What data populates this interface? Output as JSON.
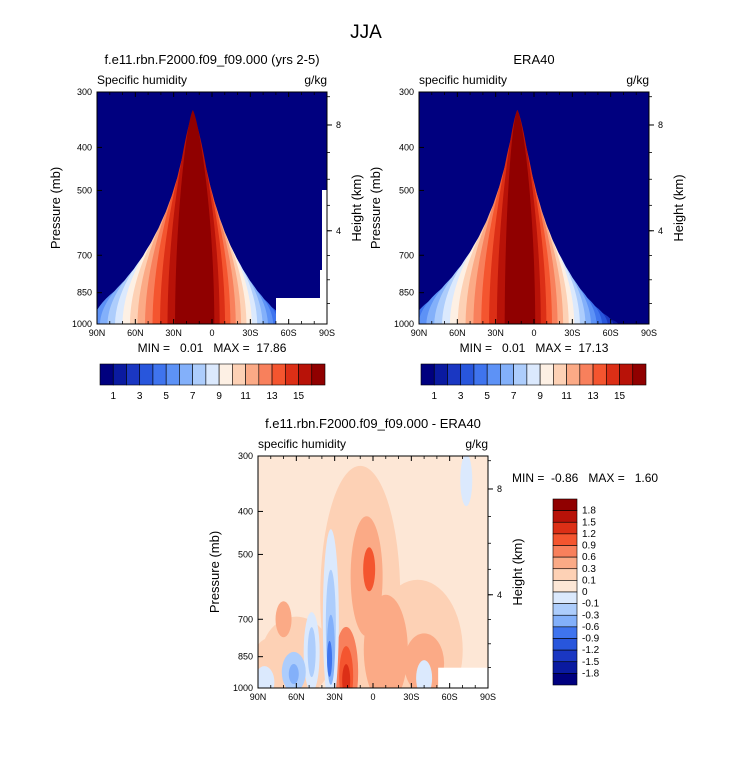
{
  "figure": {
    "title": "JJA"
  },
  "colors": {
    "cb1": [
      "#00007f",
      "#0a1aa0",
      "#1a37c2",
      "#2856dc",
      "#3f74ee",
      "#5d92f6",
      "#83b0fa",
      "#adcdfc",
      "#dbe9fd",
      "#fdf0e4",
      "#fdd1b5",
      "#fbaa86",
      "#f8805c",
      "#f4552f",
      "#dc2f16",
      "#b81208",
      "#900000"
    ],
    "cb2": [
      "#00007f",
      "#0a1aa0",
      "#1a37c2",
      "#2856dc",
      "#3f74ee",
      "#83b0fa",
      "#adcdfc",
      "#dbe9fd",
      "#fde7d6",
      "#fdd1b5",
      "#fbaa86",
      "#f8805c",
      "#f4552f",
      "#dc2f16",
      "#b81208",
      "#900000"
    ]
  },
  "chart_data": [
    {
      "id": "model",
      "type": "contour",
      "title": "f.e11.rbn.F2000.f09_f09.000 (yrs 2-5)",
      "left_label": "Specific humidity",
      "right_label": "g/kg",
      "xlabel": "",
      "ylabel": "Pressure (mb)",
      "ylabel_right": "Height (km)",
      "x_ticks": [
        "90N",
        "60N",
        "30N",
        "0",
        "30S",
        "60S",
        "90S"
      ],
      "y_ticks": [
        "300",
        "400",
        "500",
        "700",
        "850",
        "1000"
      ],
      "y_ticks_right": [
        "8",
        "4"
      ],
      "xlim": [
        90,
        -90
      ],
      "ylim": [
        1000,
        300
      ],
      "stats": "MIN =   0.01   MAX =  17.86",
      "levels": [
        1,
        2,
        3,
        4,
        5,
        6,
        7,
        8,
        9,
        10,
        11,
        12,
        13,
        14,
        15,
        16
      ],
      "peak_value": 17.86,
      "peak_lat": 12,
      "colorbar_labels": [
        "1",
        "3",
        "5",
        "7",
        "9",
        "11",
        "13",
        "15"
      ]
    },
    {
      "id": "era40",
      "type": "contour",
      "title": "ERA40",
      "left_label": "specific humidity",
      "right_label": "g/kg",
      "xlabel": "",
      "ylabel": "Pressure (mb)",
      "ylabel_right": "Height (km)",
      "x_ticks": [
        "90N",
        "60N",
        "30N",
        "0",
        "30S",
        "60S",
        "90S"
      ],
      "y_ticks": [
        "300",
        "400",
        "500",
        "700",
        "850",
        "1000"
      ],
      "y_ticks_right": [
        "8",
        "4"
      ],
      "xlim": [
        90,
        -90
      ],
      "ylim": [
        1000,
        300
      ],
      "stats": "MIN =   0.01   MAX =  17.13",
      "levels": [
        1,
        2,
        3,
        4,
        5,
        6,
        7,
        8,
        9,
        10,
        11,
        12,
        13,
        14,
        15,
        16
      ],
      "peak_value": 17.13,
      "peak_lat": 10,
      "colorbar_labels": [
        "1",
        "3",
        "5",
        "7",
        "9",
        "11",
        "13",
        "15"
      ]
    },
    {
      "id": "diff",
      "type": "contour",
      "title": "f.e11.rbn.F2000.f09_f09.000 - ERA40",
      "left_label": "specific humidity",
      "right_label": "g/kg",
      "xlabel": "",
      "ylabel": "Pressure (mb)",
      "ylabel_right": "Height (km)",
      "x_ticks": [
        "90N",
        "60N",
        "30N",
        "0",
        "30S",
        "60S",
        "90S"
      ],
      "y_ticks": [
        "300",
        "400",
        "500",
        "700",
        "850",
        "1000"
      ],
      "y_ticks_right": [
        "8",
        "4"
      ],
      "xlim": [
        90,
        -90
      ],
      "ylim": [
        1000,
        300
      ],
      "stats": "MIN =  -0.86   MAX =   1.60",
      "levels": [
        -1.8,
        -1.5,
        -1.2,
        -0.9,
        -0.6,
        -0.3,
        -0.1,
        0,
        0.1,
        0.3,
        0.6,
        0.9,
        1.2,
        1.5,
        1.8
      ],
      "min_value": -0.86,
      "max_value": 1.6,
      "colorbar_labels": [
        "1.8",
        "1.5",
        "1.2",
        "0.9",
        "0.6",
        "0.3",
        "0.1",
        "0",
        "-0.1",
        "-0.3",
        "-0.6",
        "-0.9",
        "-1.2",
        "-1.5",
        "-1.8"
      ]
    }
  ]
}
